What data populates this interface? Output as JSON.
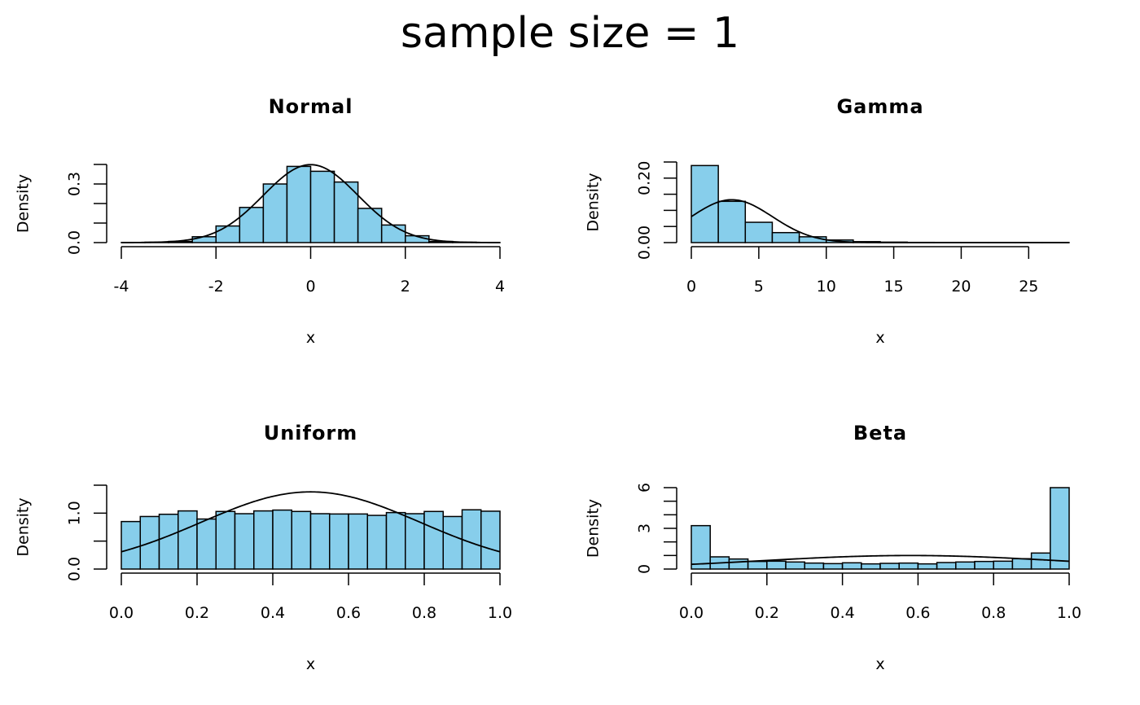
{
  "title": "sample size = 1",
  "colors": {
    "bar_fill": "#87CEEB",
    "bar_stroke": "#000000",
    "curve": "#000000"
  },
  "chart_data": [
    {
      "type": "bar",
      "title": "Normal",
      "xlabel": "x",
      "ylabel": "Density",
      "xlim": [
        -4,
        4
      ],
      "ylim": [
        0,
        0.4
      ],
      "xticks": [
        -4,
        -2,
        0,
        2,
        4
      ],
      "xtick_labels": [
        "-4",
        "-2",
        "0",
        "2",
        "4"
      ],
      "yticks": [
        0,
        0.1,
        0.2,
        0.3,
        0.4
      ],
      "ytick_labels": [
        {
          "value": 0,
          "label": "0.0"
        },
        {
          "value": 0.3,
          "label": "0.3"
        }
      ],
      "bin_start": -4,
      "bin_width": 0.5,
      "values": [
        0.0005,
        0.002,
        0.006,
        0.03,
        0.085,
        0.18,
        0.3,
        0.39,
        0.365,
        0.31,
        0.175,
        0.09,
        0.035,
        0.006,
        0.002,
        0.0005
      ],
      "curve": {
        "type": "normal-density",
        "mean": 0,
        "sd": 1
      }
    },
    {
      "type": "bar",
      "title": "Gamma",
      "xlabel": "x",
      "ylabel": "Density",
      "xlim": [
        0,
        28
      ],
      "ylim": [
        0,
        0.25
      ],
      "xticks": [
        0,
        5,
        10,
        15,
        20,
        25
      ],
      "xtick_labels": [
        "0",
        "5",
        "10",
        "15",
        "20",
        "25"
      ],
      "yticks": [
        0,
        0.05,
        0.1,
        0.15,
        0.2,
        0.25
      ],
      "ytick_labels": [
        {
          "value": 0,
          "label": "0.00"
        },
        {
          "value": 0.2,
          "label": "0.20"
        }
      ],
      "bin_start": 0,
      "bin_width": 2,
      "values": [
        0.239,
        0.128,
        0.063,
        0.031,
        0.018,
        0.008,
        0.003,
        0.0015,
        0.0007,
        0.0004,
        0.0002,
        0.0001,
        0.0001,
        0.0001
      ],
      "curve": {
        "type": "normal-density",
        "mean": 3,
        "sd": 3
      }
    },
    {
      "type": "bar",
      "title": "Uniform",
      "xlabel": "x",
      "ylabel": "Density",
      "xlim": [
        0,
        1
      ],
      "ylim": [
        0,
        1.5
      ],
      "xticks": [
        0,
        0.2,
        0.4,
        0.6,
        0.8,
        1.0
      ],
      "xtick_labels": [
        "0.0",
        "0.2",
        "0.4",
        "0.6",
        "0.8",
        "1.0"
      ],
      "yticks": [
        0,
        0.5,
        1.0,
        1.5
      ],
      "ytick_labels": [
        {
          "value": 0,
          "label": "0.0"
        },
        {
          "value": 1.0,
          "label": "1.0"
        }
      ],
      "bin_start": 0,
      "bin_width": 0.05,
      "values": [
        0.85,
        0.94,
        0.98,
        1.04,
        0.895,
        1.03,
        0.99,
        1.04,
        1.055,
        1.03,
        0.99,
        0.985,
        0.985,
        0.96,
        1.01,
        0.99,
        1.03,
        0.94,
        1.06,
        1.035
      ],
      "curve": {
        "type": "normal-density",
        "mean": 0.5,
        "sd": 0.289
      }
    },
    {
      "type": "bar",
      "title": "Beta",
      "xlabel": "x",
      "ylabel": "Density",
      "xlim": [
        0,
        1
      ],
      "ylim": [
        0,
        6
      ],
      "xticks": [
        0,
        0.2,
        0.4,
        0.6,
        0.8,
        1.0
      ],
      "xtick_labels": [
        "0.0",
        "0.2",
        "0.4",
        "0.6",
        "0.8",
        "1.0"
      ],
      "yticks": [
        0,
        1,
        2,
        3,
        4,
        5,
        6
      ],
      "ytick_labels": [
        {
          "value": 0,
          "label": "0"
        },
        {
          "value": 3,
          "label": "3"
        },
        {
          "value": 6,
          "label": "6"
        }
      ],
      "bin_start": 0,
      "bin_width": 0.05,
      "values": [
        3.2,
        0.9,
        0.74,
        0.56,
        0.58,
        0.52,
        0.44,
        0.4,
        0.46,
        0.38,
        0.42,
        0.44,
        0.38,
        0.48,
        0.52,
        0.56,
        0.58,
        0.76,
        1.18,
        6.0
      ],
      "curve": {
        "type": "normal-density",
        "mean": 0.58,
        "sd": 0.4
      }
    }
  ]
}
